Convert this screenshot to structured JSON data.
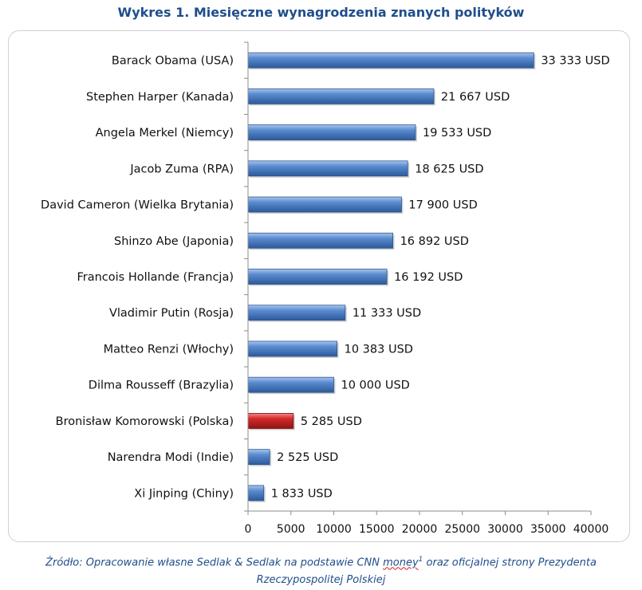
{
  "chart_data": {
    "type": "bar",
    "orientation": "horizontal",
    "title": "Wykres 1. Miesięczne wynagrodzenia znanych polityków",
    "categories": [
      "Barack Obama (USA)",
      "Stephen Harper (Kanada)",
      "Angela Merkel (Niemcy)",
      "Jacob Zuma (RPA)",
      "David Cameron (Wielka Brytania)",
      "Shinzo Abe (Japonia)",
      "Francois Hollande (Francja)",
      "Vladimir Putin (Rosja)",
      "Matteo Renzi (Włochy)",
      "Dilma Rousseff (Brazylia)",
      "Bronisław Komorowski (Polska)",
      "Narendra Modi (Indie)",
      "Xi Jinping (Chiny)"
    ],
    "values": [
      33333,
      21667,
      19533,
      18625,
      17900,
      16892,
      16192,
      11333,
      10383,
      10000,
      5285,
      2525,
      1833
    ],
    "data_labels": [
      "33 333 USD",
      "21 667 USD",
      "19 533 USD",
      "18 625 USD",
      "17 900 USD",
      "16 892 USD",
      "16 192 USD",
      "11 333 USD",
      "10 383 USD",
      "10 000 USD",
      "5 285 USD",
      "2 525 USD",
      "1 833 USD"
    ],
    "highlight_category": "Bronisław Komorowski (Polska)",
    "xlim": [
      0,
      40000
    ],
    "xticks": [
      0,
      5000,
      10000,
      15000,
      20000,
      25000,
      30000,
      35000,
      40000
    ],
    "xtick_labels": [
      "0",
      "5000",
      "10000",
      "15000",
      "20000",
      "25000",
      "30000",
      "35000",
      "40000"
    ],
    "grid": false,
    "legend": "none",
    "colors": {
      "bar": "#4F81BD",
      "bar_highlight": "#C0292B",
      "title": "#1F4E8C",
      "source_text": "#1F4E8C"
    }
  },
  "source": {
    "prefix": "Źródło: Opracowanie własne Sedlak & Sedlak na podstawie CNN ",
    "money_word": "money",
    "superscript": "1",
    "suffix": " oraz oficjalnej strony Prezydenta",
    "line2": "Rzeczypospolitej Polskiej"
  }
}
